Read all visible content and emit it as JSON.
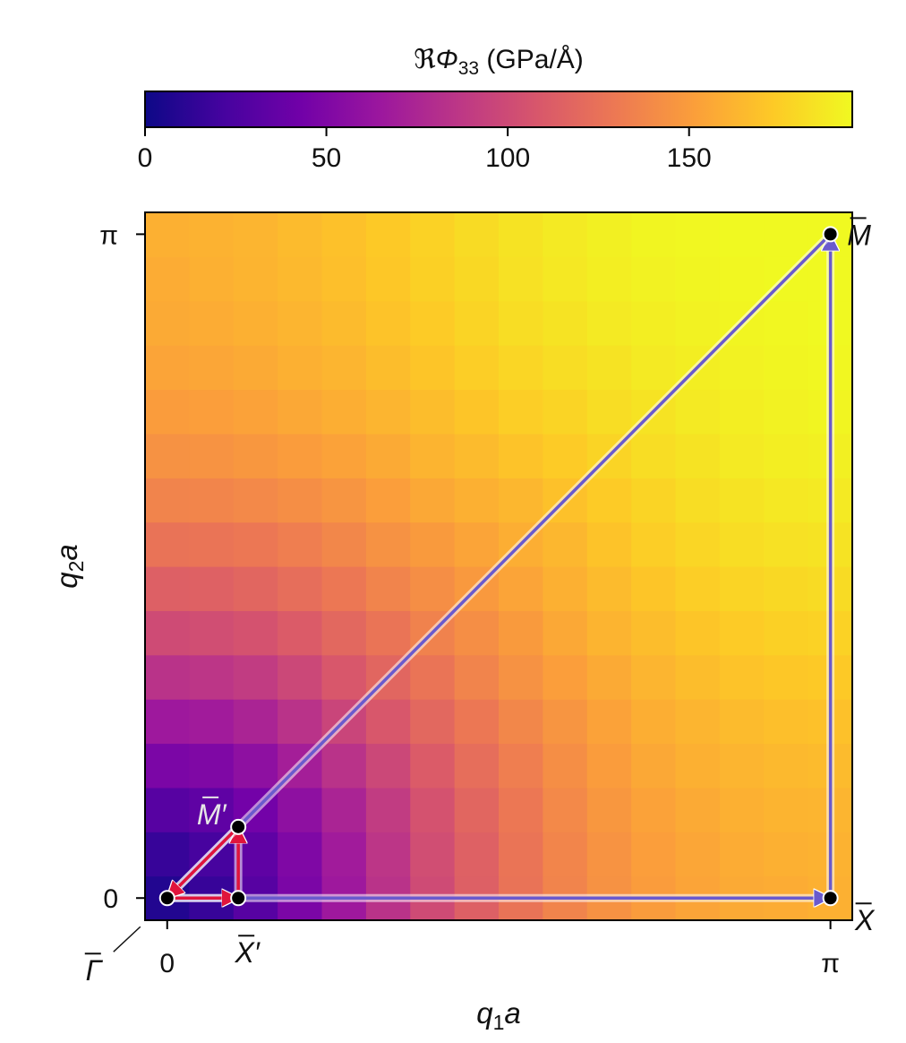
{
  "chart_data": {
    "type": "heatmap",
    "title": "",
    "colorbar": {
      "label_prefix": "ℜ",
      "label_symbol": "Φ",
      "label_sub": "33",
      "label_unit": " (GPa/Å)",
      "range": [
        0,
        195
      ],
      "ticks": [
        0,
        50,
        100,
        150
      ],
      "tick_labels": [
        "0",
        "50",
        "100",
        "150"
      ],
      "colormap": "plasma",
      "stops": [
        "#0d0887",
        "#46039f",
        "#7201a8",
        "#9c179e",
        "#bd3786",
        "#d8576b",
        "#ed7953",
        "#fb9f3a",
        "#fdca26",
        "#f0f921"
      ]
    },
    "xlabel_main": "q",
    "xlabel_sub": "1",
    "xlabel_tail": "a",
    "ylabel_main": "q",
    "ylabel_sub": "2",
    "ylabel_tail": "a",
    "x_range": [
      -0.105,
      3.245
    ],
    "y_range": [
      -0.105,
      3.245
    ],
    "x_ticks": [
      0,
      3.14159
    ],
    "x_tick_labels": [
      "0",
      "π"
    ],
    "y_ticks": [
      0,
      3.14159
    ],
    "y_tick_labels": [
      "0",
      "π"
    ],
    "grid": false,
    "heatmap_values": [
      [
        8,
        16,
        30,
        48,
        66,
        84,
        100,
        114,
        126,
        136,
        144,
        150,
        154,
        157,
        158,
        160
      ],
      [
        16,
        22,
        34,
        50,
        68,
        86,
        102,
        115,
        127,
        137,
        145,
        151,
        155,
        158,
        160,
        161
      ],
      [
        30,
        34,
        44,
        58,
        74,
        90,
        105,
        118,
        129,
        139,
        147,
        153,
        157,
        160,
        162,
        163
      ],
      [
        48,
        50,
        58,
        70,
        84,
        98,
        111,
        123,
        133,
        142,
        150,
        156,
        160,
        163,
        165,
        166
      ],
      [
        66,
        68,
        74,
        84,
        96,
        108,
        119,
        129,
        138,
        146,
        153,
        159,
        163,
        166,
        168,
        169
      ],
      [
        84,
        86,
        90,
        98,
        108,
        118,
        127,
        136,
        144,
        151,
        157,
        163,
        167,
        170,
        172,
        173
      ],
      [
        100,
        102,
        105,
        111,
        119,
        127,
        135,
        142,
        149,
        156,
        162,
        167,
        171,
        174,
        176,
        177
      ],
      [
        114,
        115,
        118,
        123,
        129,
        136,
        142,
        148,
        154,
        160,
        166,
        171,
        175,
        178,
        180,
        181
      ],
      [
        126,
        127,
        129,
        133,
        138,
        144,
        149,
        154,
        159,
        164,
        170,
        175,
        179,
        182,
        184,
        185
      ],
      [
        136,
        137,
        139,
        142,
        146,
        151,
        156,
        160,
        164,
        169,
        174,
        178,
        182,
        185,
        187,
        188
      ],
      [
        144,
        145,
        147,
        150,
        153,
        157,
        162,
        166,
        170,
        174,
        178,
        182,
        185,
        188,
        190,
        191
      ],
      [
        150,
        151,
        153,
        156,
        159,
        163,
        167,
        171,
        175,
        178,
        182,
        185,
        188,
        190,
        192,
        193
      ],
      [
        154,
        155,
        157,
        160,
        163,
        167,
        171,
        175,
        179,
        182,
        185,
        188,
        190,
        192,
        193,
        194
      ],
      [
        157,
        158,
        160,
        163,
        166,
        170,
        174,
        178,
        182,
        185,
        188,
        190,
        192,
        193,
        194,
        195
      ],
      [
        158,
        160,
        162,
        165,
        168,
        172,
        176,
        180,
        184,
        187,
        190,
        192,
        193,
        194,
        195,
        195
      ],
      [
        160,
        161,
        163,
        166,
        169,
        173,
        177,
        181,
        185,
        188,
        191,
        193,
        194,
        195,
        195,
        195
      ]
    ],
    "heatmap_row_order": "bottom-to-top",
    "points": [
      {
        "name": "Γ",
        "x": 0,
        "y": 0,
        "prime": false,
        "label_pos": "bottom-left"
      },
      {
        "name": "X",
        "x": 0.3367,
        "y": 0,
        "prime": true,
        "label_pos": "below"
      },
      {
        "name": "M",
        "x": 0.3367,
        "y": 0.3367,
        "prime": true,
        "label_pos": "upper-left"
      },
      {
        "name": "X",
        "x": 3.14159,
        "y": 0,
        "prime": false,
        "label_pos": "lower-right"
      },
      {
        "name": "M",
        "x": 3.14159,
        "y": 3.14159,
        "prime": false,
        "label_pos": "upper-right"
      }
    ],
    "paths": [
      {
        "name": "outer-path",
        "color": "#6a5acd",
        "segments": [
          [
            [
              0,
              0
            ],
            [
              3.14159,
              0
            ]
          ],
          [
            [
              3.14159,
              0
            ],
            [
              3.14159,
              3.14159
            ]
          ],
          [
            [
              3.14159,
              3.14159
            ],
            [
              0,
              0
            ]
          ]
        ]
      },
      {
        "name": "inner-path",
        "color": "#e0143c",
        "segments": [
          [
            [
              0,
              0
            ],
            [
              0.3367,
              0
            ]
          ],
          [
            [
              0.3367,
              0
            ],
            [
              0.3367,
              0.3367
            ]
          ],
          [
            [
              0.3367,
              0.3367
            ],
            [
              0,
              0
            ]
          ]
        ]
      }
    ]
  }
}
